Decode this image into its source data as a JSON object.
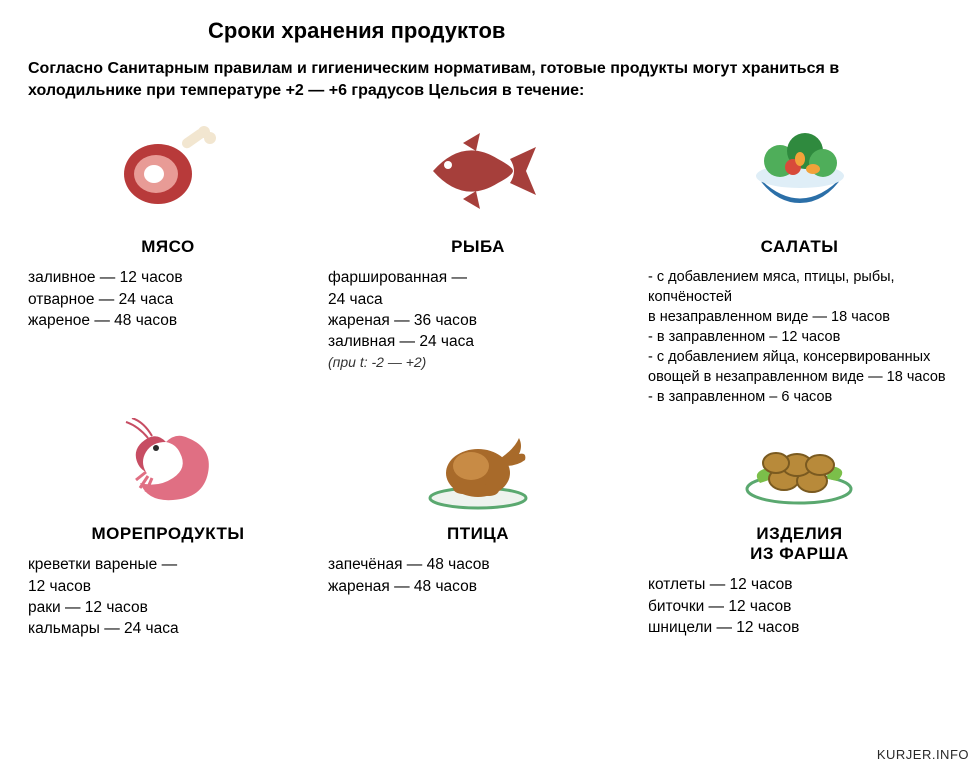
{
  "title": "Сроки хранения продуктов",
  "intro": "Согласно Санитарным правилам и гигиеническим нормативам, готовые продукты могут храниться в холодильнике при температуре +2 — +6 градусов Цельсия в течение:",
  "footer": "KURJER.INFO",
  "colors": {
    "meat_red": "#b83a3a",
    "meat_light": "#e89b96",
    "bone": "#f2e6d0",
    "fish": "#a63f3b",
    "salad_green1": "#4fae5a",
    "salad_green2": "#2f8a3e",
    "salad_red": "#d84a3a",
    "salad_orange": "#f2a23a",
    "bowl": "#2b6fa8",
    "shrimp": "#e06f83",
    "shrimp_dark": "#c74d63",
    "chicken": "#a86a2a",
    "chicken_light": "#c88b45",
    "plate": "#5aa86f",
    "cutlet": "#b88a3a",
    "cutlet_edge": "#7a5a20",
    "lettuce": "#7bbf4a"
  },
  "items": [
    {
      "icon": "meat",
      "label": "МЯСО",
      "lines": [
        "заливное — 12 часов",
        "отварное — 24 часа",
        "жареное — 48 часов"
      ]
    },
    {
      "icon": "fish",
      "label": "РЫБА",
      "lines": [
        "фаршированная —",
        "24 часа",
        "жареная — 36 часов",
        "заливная — 24 часа"
      ],
      "note": "(при t: -2 — +2)"
    },
    {
      "icon": "salad",
      "label": "САЛАТЫ",
      "small": true,
      "lines": [
        "- с добавлением мяса, птицы, рыбы, копчёностей",
        "в незаправленном виде — 18 часов",
        "- в заправленном – 12 часов",
        "- с добавлением яйца, консервированных",
        "овощей в незаправленном виде — 18 часов",
        "- в заправленном – 6 часов"
      ]
    },
    {
      "icon": "shrimp",
      "label": "МОРЕПРОДУКТЫ",
      "lines": [
        "креветки вареные —",
        "12 часов",
        "раки — 12 часов",
        "кальмары — 24 часа"
      ]
    },
    {
      "icon": "poultry",
      "label": "ПТИЦА",
      "lines": [
        "запечёная — 48 часов",
        "жареная — 48 часов"
      ]
    },
    {
      "icon": "cutlets",
      "label": "ИЗДЕЛИЯ ИЗ ФАРША",
      "label_break": [
        "ИЗДЕЛИЯ",
        "ИЗ ФАРША"
      ],
      "lines": [
        "котлеты — 12 часов",
        "биточки — 12 часов",
        "шницели — 12 часов"
      ]
    }
  ]
}
